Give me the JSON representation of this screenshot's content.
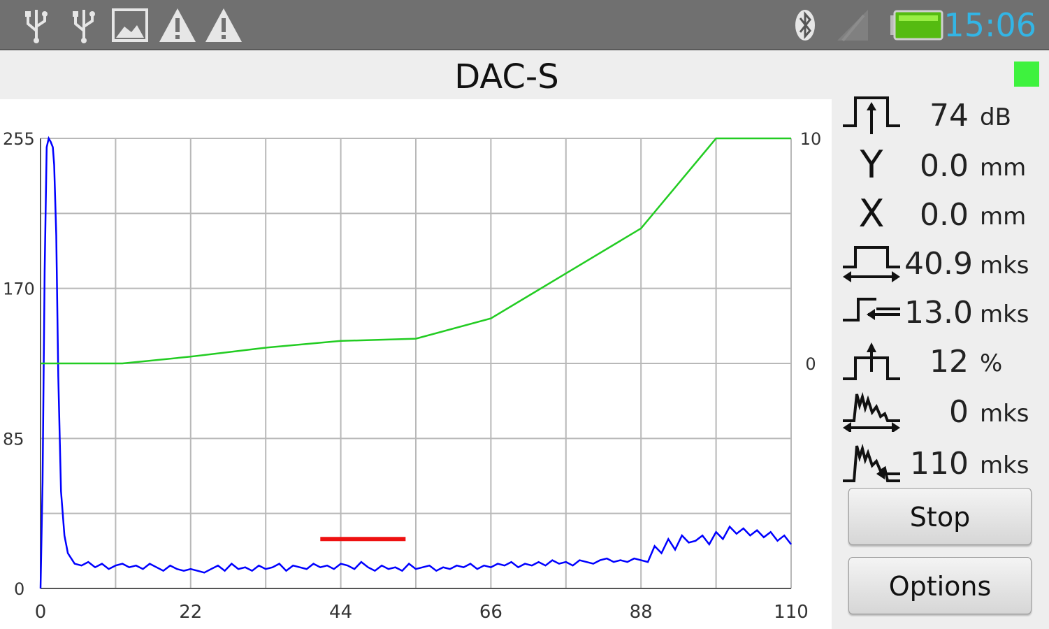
{
  "status_bar": {
    "icons": [
      "usb-icon",
      "usb-icon",
      "image-icon",
      "warning-icon",
      "warning-icon",
      "bluetooth-icon",
      "no-signal-icon",
      "battery-icon"
    ],
    "time": "15:06",
    "time_color": "#33b5e5"
  },
  "header": {
    "title": "DAC-S",
    "indicator_color": "#3ef23e"
  },
  "readouts": [
    {
      "icon": "gain-icon",
      "value": "74",
      "unit": "dB"
    },
    {
      "letter": "Y",
      "value": "0.0",
      "unit": "mm"
    },
    {
      "letter": "X",
      "value": "0.0",
      "unit": "mm"
    },
    {
      "icon": "pulse-width-icon",
      "value": "40.9",
      "unit": "mks"
    },
    {
      "icon": "delay-icon",
      "value": "13.0",
      "unit": "mks"
    },
    {
      "icon": "threshold-icon",
      "value": "12",
      "unit": "%"
    },
    {
      "icon": "sweep-start-icon",
      "value": "0",
      "unit": "mks"
    },
    {
      "icon": "sweep-range-icon",
      "value": "110",
      "unit": "mks"
    }
  ],
  "buttons": {
    "stop": "Stop",
    "options": "Options"
  },
  "chart_data": {
    "type": "line",
    "x_ticks": [
      "0",
      "22",
      "44",
      "66",
      "88",
      "110"
    ],
    "y_left_ticks": [
      "255",
      "170",
      "85",
      "0"
    ],
    "y_right_ticks": [
      "10",
      "0"
    ],
    "xlim": [
      0,
      110
    ],
    "ylim_left": [
      0,
      255
    ],
    "ylim_right": [
      -10,
      10
    ],
    "grid": true,
    "series": [
      {
        "color": "#0000ff",
        "axis": "left",
        "x": [
          0,
          0.3,
          0.6,
          0.9,
          1.2,
          1.5,
          1.8,
          2,
          2.3,
          2.6,
          3,
          3.5,
          4,
          5,
          6,
          7,
          8,
          9,
          10,
          11,
          12,
          13,
          14,
          15,
          16,
          17,
          18,
          19,
          20,
          21,
          22,
          23,
          24,
          25,
          26,
          27,
          28,
          29,
          30,
          31,
          32,
          33,
          34,
          35,
          36,
          37,
          38,
          39,
          40,
          41,
          42,
          43,
          44,
          45,
          46,
          47,
          48,
          49,
          50,
          51,
          52,
          53,
          54,
          55,
          56,
          57,
          58,
          59,
          60,
          61,
          62,
          63,
          64,
          65,
          66,
          67,
          68,
          69,
          70,
          71,
          72,
          73,
          74,
          75,
          76,
          77,
          78,
          79,
          80,
          81,
          82,
          83,
          84,
          85,
          86,
          87,
          88,
          89,
          90,
          91,
          92,
          93,
          94,
          95,
          96,
          97,
          98,
          99,
          100,
          101,
          102,
          103,
          104,
          105,
          106,
          107,
          108,
          109,
          110
        ],
        "y": [
          0,
          60,
          180,
          250,
          255,
          253,
          250,
          240,
          200,
          120,
          55,
          30,
          20,
          14,
          13,
          15,
          12,
          14,
          11,
          13,
          14,
          12,
          13,
          11,
          14,
          12,
          10,
          13,
          11,
          10,
          11,
          10,
          9,
          11,
          13,
          10,
          14,
          11,
          12,
          10,
          13,
          11,
          12,
          14,
          10,
          13,
          12,
          11,
          14,
          12,
          13,
          11,
          14,
          13,
          11,
          15,
          12,
          10,
          13,
          11,
          12,
          10,
          14,
          11,
          12,
          13,
          10,
          12,
          11,
          13,
          12,
          14,
          11,
          13,
          12,
          14,
          13,
          15,
          12,
          14,
          13,
          15,
          13,
          16,
          14,
          15,
          13,
          16,
          15,
          14,
          16,
          17,
          15,
          16,
          15,
          17,
          16,
          15,
          24,
          20,
          28,
          22,
          30,
          26,
          27,
          30,
          25,
          32,
          28,
          35,
          31,
          34,
          30,
          33,
          29,
          32,
          27,
          30,
          25
        ]
      },
      {
        "color": "#22cc22",
        "axis": "right",
        "x": [
          0,
          12,
          22,
          33,
          44,
          55,
          66,
          77,
          88,
          99,
          110
        ],
        "y": [
          0,
          0,
          0.3,
          0.7,
          1.0,
          1.1,
          2.0,
          4.0,
          6.0,
          10.0,
          10.0
        ]
      }
    ],
    "threshold_gate": {
      "color": "#ee1111",
      "x_start": 41,
      "x_end": 53.5,
      "level": 28
    }
  }
}
